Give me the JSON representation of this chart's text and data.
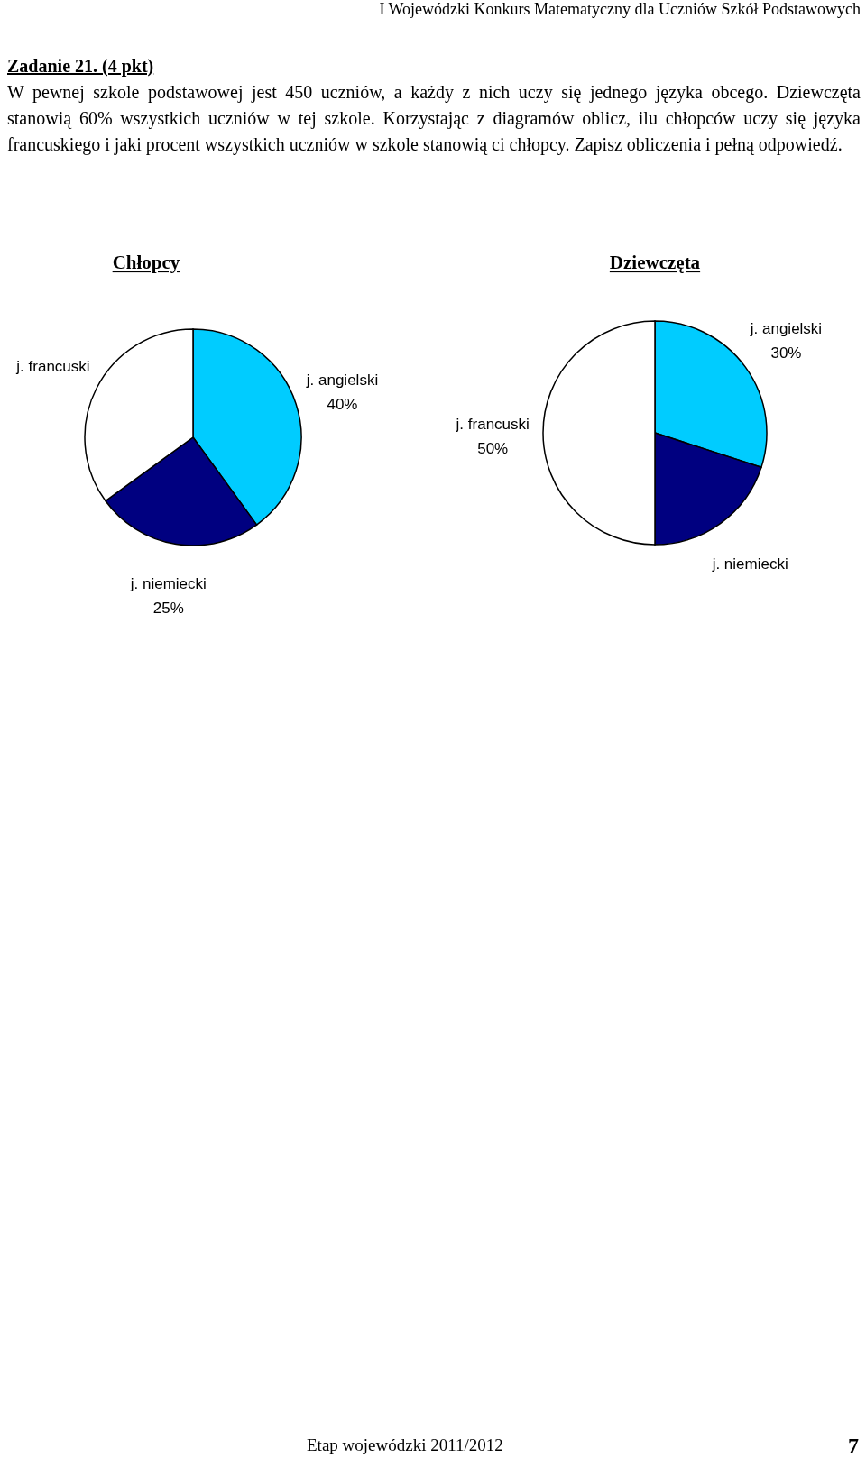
{
  "chart_data": [
    {
      "type": "pie",
      "title": "Chłopcy",
      "categories": [
        "j. angielski",
        "j. niemiecki",
        "j. francuski"
      ],
      "values": [
        40,
        25,
        35
      ],
      "colors": [
        "#00ccff",
        "#000080",
        "#ffffff"
      ],
      "value_labels": [
        "40%",
        "25%",
        null
      ],
      "annotations": [
        "I Wojewódzki Konkurs Matematyczny dla Uczniów Szkół Podstawowych",
        "Zadanie 21. (4 pkt)",
        "W pewnej szkole podstawowej jest 450 uczniów, a każdy z nich uczy się jednego języka obcego. Dziewczęta stanowią 60% wszystkich uczniów w tej szkole. Korzystając z diagramów oblicz, ilu chłopców uczy się języka francuskiego i jaki procent wszystkich uczniów w szkole stanowią ci chłopcy. Zapisz obliczenia i pełną odpowiedź."
      ]
    },
    {
      "type": "pie",
      "title": "Dziewczęta",
      "categories": [
        "j. angielski",
        "j. niemiecki",
        "j. francuski"
      ],
      "values": [
        30,
        20,
        50
      ],
      "colors": [
        "#00ccff",
        "#000080",
        "#ffffff"
      ],
      "value_labels": [
        "30%",
        null,
        "50%"
      ],
      "annotations": [
        "Etap wojewódzki 2011/2012",
        "7"
      ]
    }
  ]
}
